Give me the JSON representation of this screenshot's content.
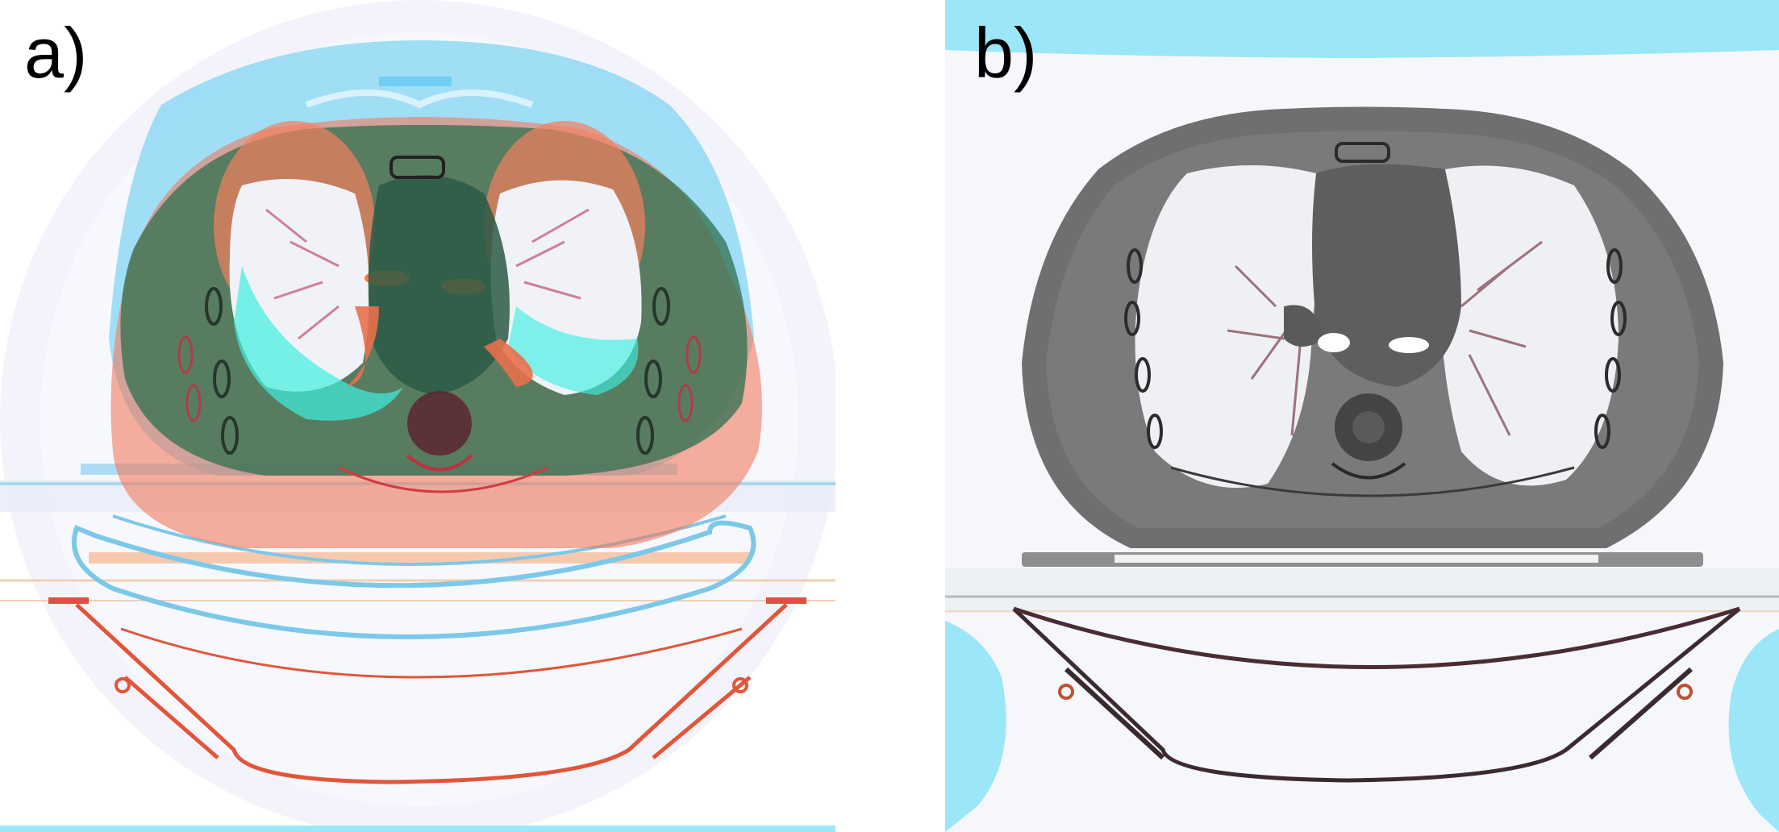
{
  "panels": [
    {
      "label": "a)",
      "description_colors": {
        "reference": "#f07050",
        "moving": "#46c8f0",
        "overlap": "#2e7a52"
      }
    },
    {
      "label": "b)",
      "description_colors": {
        "tissue": "#6e6e6e",
        "lung": "#eef0f4",
        "background": "#9be6f8"
      }
    }
  ]
}
